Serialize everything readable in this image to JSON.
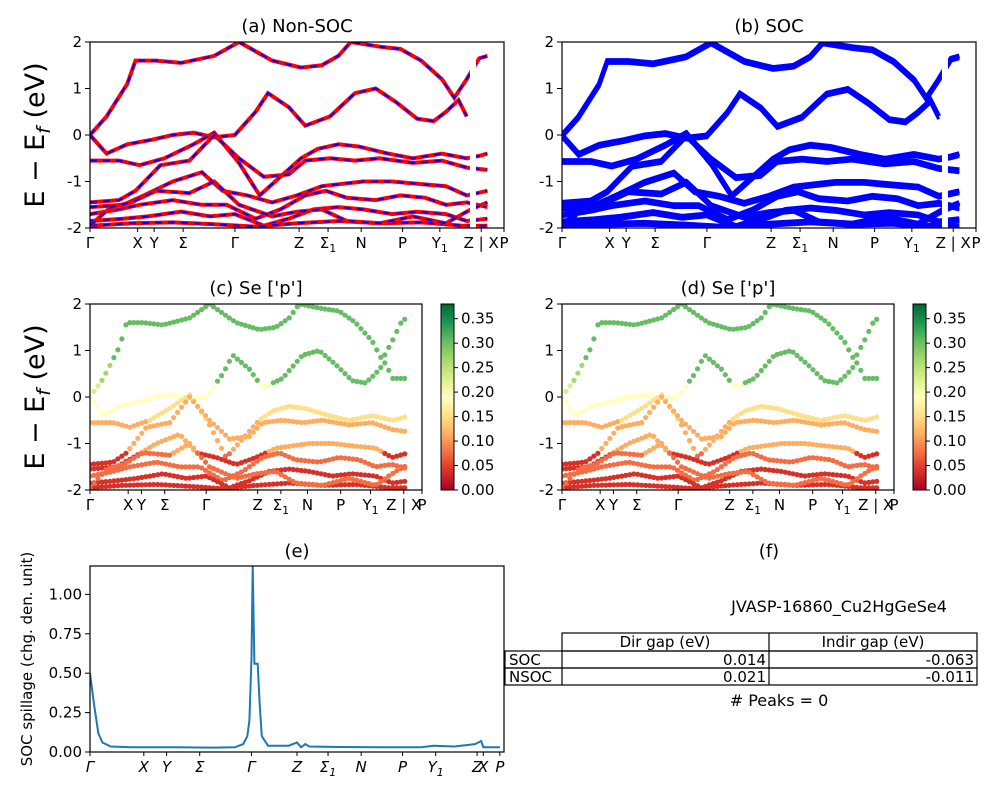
{
  "chart_data": [
    {
      "id": "a",
      "type": "line",
      "title": "(a) Non-SOC",
      "ylabel": "E − E_f (eV)",
      "ylim": [
        -2,
        2
      ],
      "yticks": [
        -2,
        -1,
        0,
        1,
        2
      ],
      "kpath": [
        "Γ",
        "X",
        "Y",
        "Σ",
        "Γ",
        "Z",
        "Σ1",
        "N",
        "P",
        "Y1",
        "Z | X",
        "P"
      ],
      "series": [
        {
          "color": "#ff0000",
          "style": "solid",
          "points": [
            [
              0,
              -0.02
            ],
            [
              0.03,
              -0.45
            ],
            [
              0.1,
              -1.5
            ],
            [
              0.18,
              -1.7
            ],
            [
              0.27,
              -1.65
            ],
            [
              0.36,
              -1.8
            ],
            [
              0.45,
              -2.0
            ]
          ]
        },
        {
          "color": "#0000ff",
          "style": "dashed"
        }
      ],
      "bands": [
        [
          [
            0,
            0.0
          ],
          [
            0.04,
            0.4
          ],
          [
            0.09,
            1.1
          ],
          [
            0.11,
            1.6
          ],
          [
            0.16,
            1.6
          ],
          [
            0.22,
            1.55
          ],
          [
            0.3,
            1.7
          ],
          [
            0.36,
            2.0
          ],
          [
            0.44,
            1.6
          ],
          [
            0.51,
            1.45
          ],
          [
            0.56,
            1.5
          ],
          [
            0.6,
            1.7
          ],
          [
            0.63,
            2.0
          ],
          [
            0.7,
            1.9
          ],
          [
            0.75,
            1.85
          ],
          [
            0.8,
            1.6
          ],
          [
            0.85,
            1.2
          ],
          [
            0.88,
            0.8
          ],
          [
            0.91,
            1.2
          ],
          [
            0.94,
            1.65
          ],
          [
            0.96,
            1.7
          ]
        ],
        [
          [
            0,
            0.0
          ],
          [
            0.04,
            -0.4
          ],
          [
            0.09,
            -0.2
          ],
          [
            0.15,
            -0.1
          ],
          [
            0.2,
            0.0
          ],
          [
            0.25,
            0.05
          ],
          [
            0.3,
            -0.05
          ],
          [
            0.35,
            0.0
          ],
          [
            0.4,
            0.5
          ],
          [
            0.43,
            0.9
          ],
          [
            0.48,
            0.6
          ],
          [
            0.52,
            0.2
          ],
          [
            0.58,
            0.4
          ],
          [
            0.64,
            0.9
          ],
          [
            0.69,
            1.0
          ],
          [
            0.74,
            0.7
          ],
          [
            0.79,
            0.35
          ],
          [
            0.83,
            0.3
          ],
          [
            0.86,
            0.5
          ],
          [
            0.89,
            0.75
          ],
          [
            0.91,
            0.4
          ]
        ],
        [
          [
            0,
            -0.55
          ],
          [
            0.07,
            -0.55
          ],
          [
            0.12,
            -0.65
          ],
          [
            0.18,
            -0.5
          ],
          [
            0.25,
            -0.2
          ],
          [
            0.3,
            0.05
          ],
          [
            0.36,
            -0.6
          ],
          [
            0.41,
            -1.3
          ],
          [
            0.46,
            -0.9
          ],
          [
            0.51,
            -0.5
          ],
          [
            0.55,
            -0.3
          ],
          [
            0.6,
            -0.2
          ],
          [
            0.65,
            -0.25
          ],
          [
            0.72,
            -0.4
          ],
          [
            0.78,
            -0.5
          ],
          [
            0.85,
            -0.4
          ],
          [
            0.91,
            -0.5
          ],
          [
            0.94,
            -0.45
          ],
          [
            0.96,
            -0.4
          ]
        ],
        [
          [
            0,
            -1.45
          ],
          [
            0.07,
            -1.4
          ],
          [
            0.11,
            -1.2
          ],
          [
            0.17,
            -0.65
          ],
          [
            0.24,
            -0.55
          ],
          [
            0.3,
            0.0
          ],
          [
            0.36,
            -0.5
          ],
          [
            0.42,
            -0.9
          ],
          [
            0.48,
            -0.85
          ],
          [
            0.52,
            -0.55
          ],
          [
            0.58,
            -0.5
          ],
          [
            0.64,
            -0.55
          ],
          [
            0.7,
            -0.5
          ],
          [
            0.78,
            -0.6
          ],
          [
            0.85,
            -0.55
          ],
          [
            0.91,
            -0.7
          ],
          [
            0.96,
            -0.75
          ]
        ],
        [
          [
            0,
            -1.55
          ],
          [
            0.08,
            -1.5
          ],
          [
            0.13,
            -1.3
          ],
          [
            0.2,
            -1.0
          ],
          [
            0.27,
            -0.8
          ],
          [
            0.32,
            -1.2
          ],
          [
            0.38,
            -1.3
          ],
          [
            0.44,
            -1.45
          ],
          [
            0.5,
            -1.3
          ],
          [
            0.56,
            -1.1
          ],
          [
            0.61,
            -1.05
          ],
          [
            0.66,
            -1.0
          ],
          [
            0.73,
            -1.0
          ],
          [
            0.79,
            -1.05
          ],
          [
            0.86,
            -1.1
          ],
          [
            0.91,
            -1.3
          ],
          [
            0.96,
            -1.2
          ]
        ],
        [
          [
            0,
            -1.7
          ],
          [
            0.07,
            -1.6
          ],
          [
            0.12,
            -1.5
          ],
          [
            0.2,
            -1.4
          ],
          [
            0.27,
            -1.5
          ],
          [
            0.33,
            -1.5
          ],
          [
            0.4,
            -1.8
          ],
          [
            0.46,
            -1.6
          ],
          [
            0.52,
            -1.3
          ],
          [
            0.57,
            -1.2
          ],
          [
            0.62,
            -1.35
          ],
          [
            0.69,
            -1.4
          ],
          [
            0.75,
            -1.3
          ],
          [
            0.81,
            -1.35
          ],
          [
            0.86,
            -1.5
          ],
          [
            0.91,
            -1.45
          ],
          [
            0.96,
            -1.55
          ]
        ],
        [
          [
            0,
            -1.85
          ],
          [
            0.08,
            -1.8
          ],
          [
            0.14,
            -1.75
          ],
          [
            0.22,
            -1.65
          ],
          [
            0.29,
            -1.75
          ],
          [
            0.35,
            -1.7
          ],
          [
            0.42,
            -1.95
          ],
          [
            0.48,
            -1.8
          ],
          [
            0.54,
            -1.6
          ],
          [
            0.6,
            -1.55
          ],
          [
            0.66,
            -1.6
          ],
          [
            0.73,
            -1.7
          ],
          [
            0.79,
            -1.65
          ],
          [
            0.86,
            -1.7
          ],
          [
            0.91,
            -1.85
          ],
          [
            0.96,
            -1.8
          ]
        ],
        [
          [
            0,
            -1.95
          ],
          [
            0.1,
            -1.9
          ],
          [
            0.2,
            -1.88
          ],
          [
            0.3,
            -1.92
          ],
          [
            0.4,
            -1.97
          ],
          [
            0.5,
            -1.9
          ],
          [
            0.6,
            -1.85
          ],
          [
            0.7,
            -1.9
          ],
          [
            0.8,
            -1.88
          ],
          [
            0.9,
            -1.95
          ],
          [
            0.96,
            -1.95
          ]
        ],
        [
          [
            0,
            -1.95
          ],
          [
            0.05,
            -1.55
          ],
          [
            0.1,
            -1.45
          ],
          [
            0.16,
            -1.2
          ],
          [
            0.24,
            -1.25
          ],
          [
            0.3,
            -1.0
          ],
          [
            0.36,
            -1.5
          ],
          [
            0.44,
            -1.75
          ],
          [
            0.5,
            -1.65
          ],
          [
            0.56,
            -1.6
          ],
          [
            0.62,
            -1.85
          ],
          [
            0.7,
            -1.9
          ],
          [
            0.78,
            -1.75
          ],
          [
            0.86,
            -1.9
          ],
          [
            0.92,
            -1.6
          ],
          [
            0.96,
            -1.45
          ]
        ]
      ]
    },
    {
      "id": "b",
      "type": "line",
      "title": "(b) SOC",
      "ylim": [
        -2,
        2
      ],
      "yticks": [
        -2,
        -1,
        0,
        1,
        2
      ],
      "kpath": [
        "Γ",
        "X",
        "Y",
        "Σ",
        "Γ",
        "Z",
        "Σ1",
        "N",
        "P",
        "Y1",
        "Z | X",
        "P"
      ],
      "series": [
        {
          "color": "#0000ff",
          "style": "solid"
        }
      ]
    },
    {
      "id": "c",
      "type": "scatter",
      "title": "(c)  Se ['p']",
      "ylabel": "E − E_f (eV)",
      "ylim": [
        -2,
        2
      ],
      "yticks": [
        -2,
        -1,
        0,
        1,
        2
      ],
      "kpath": [
        "Γ",
        "X",
        "Y",
        "Σ",
        "Γ",
        "Z",
        "Σ1",
        "N",
        "P",
        "Y1",
        "Z | X",
        "P"
      ],
      "colorbar": {
        "cmap": "RdYlGn",
        "range": [
          0.0,
          0.38
        ],
        "ticks": [
          "0.00",
          "0.05",
          "0.10",
          "0.15",
          "0.20",
          "0.25",
          "0.30",
          "0.35"
        ]
      }
    },
    {
      "id": "d",
      "type": "scatter",
      "title": "(d) Se ['p']",
      "ylim": [
        -2,
        2
      ],
      "yticks": [
        -2,
        -1,
        0,
        1,
        2
      ],
      "kpath": [
        "Γ",
        "X",
        "Y",
        "Σ",
        "Γ",
        "Z",
        "Σ1",
        "N",
        "P",
        "Y1",
        "Z | X",
        "P"
      ],
      "colorbar": {
        "cmap": "RdYlGn",
        "range": [
          0.0,
          0.38
        ],
        "ticks": [
          "0.00",
          "0.05",
          "0.10",
          "0.15",
          "0.20",
          "0.25",
          "0.30",
          "0.35"
        ]
      }
    },
    {
      "id": "e",
      "type": "line",
      "title": "(e)",
      "ylabel": "SOC spillage (chg. den. unit)",
      "ylim": [
        0,
        1.18
      ],
      "yticks": [
        "0.00",
        "0.25",
        "0.50",
        "0.75",
        "1.00"
      ],
      "kpath": [
        "Γ",
        "X",
        "Y",
        "Σ",
        "Γ",
        "Z",
        "Σ1",
        "N",
        "P",
        "Y1",
        "Z",
        "X",
        "P"
      ],
      "series": [
        {
          "color": "#1f77b4",
          "points": [
            [
              0,
              0.5
            ],
            [
              0.01,
              0.3
            ],
            [
              0.02,
              0.12
            ],
            [
              0.03,
              0.06
            ],
            [
              0.05,
              0.035
            ],
            [
              0.1,
              0.03
            ],
            [
              0.2,
              0.03
            ],
            [
              0.3,
              0.028
            ],
            [
              0.35,
              0.03
            ],
            [
              0.37,
              0.05
            ],
            [
              0.38,
              0.1
            ],
            [
              0.385,
              0.2
            ],
            [
              0.39,
              0.6
            ],
            [
              0.393,
              1.18
            ],
            [
              0.397,
              0.56
            ],
            [
              0.405,
              0.56
            ],
            [
              0.41,
              0.3
            ],
            [
              0.415,
              0.1
            ],
            [
              0.43,
              0.04
            ],
            [
              0.48,
              0.04
            ],
            [
              0.5,
              0.06
            ],
            [
              0.51,
              0.03
            ],
            [
              0.52,
              0.05
            ],
            [
              0.53,
              0.035
            ],
            [
              0.6,
              0.032
            ],
            [
              0.7,
              0.03
            ],
            [
              0.8,
              0.03
            ],
            [
              0.83,
              0.04
            ],
            [
              0.88,
              0.035
            ],
            [
              0.93,
              0.05
            ],
            [
              0.945,
              0.07
            ],
            [
              0.95,
              0.03
            ],
            [
              0.99,
              0.03
            ]
          ]
        }
      ]
    }
  ],
  "info": {
    "title": "(f)",
    "material": "JVASP-16860_Cu2HgGeSe4",
    "table": {
      "headers": [
        "Dir gap (eV)",
        "Indir gap (eV)"
      ],
      "rows": [
        {
          "label": "SOC",
          "dir": "0.014",
          "indir": "-0.063"
        },
        {
          "label": "NSOC",
          "dir": "0.021",
          "indir": "-0.011"
        }
      ]
    },
    "peaks": "# Peaks = 0"
  }
}
